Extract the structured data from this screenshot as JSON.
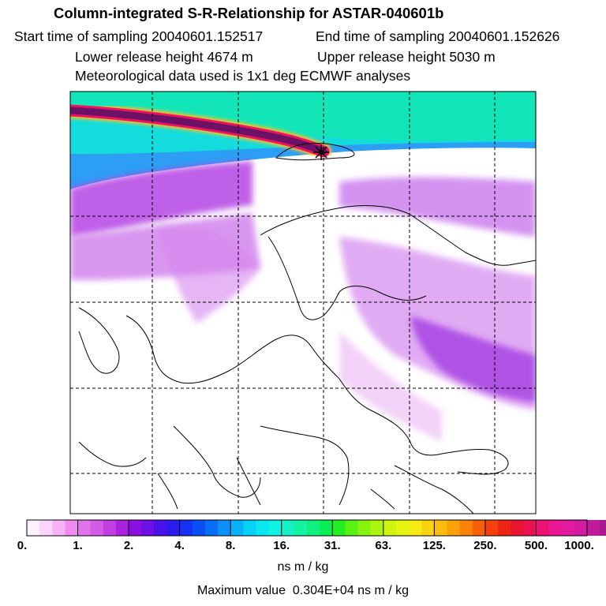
{
  "header": {
    "title": "Column-integrated S-R-Relationship for ASTAR-040601b",
    "start_time": "Start time of sampling 20040601.152517",
    "end_time": "End time of sampling 20040601.152626",
    "lower_height": "Lower release height 4674 m",
    "upper_height": "Upper release height 5030 m",
    "met_data": "Meteorological data used is 1x1 deg ECMWF analyses"
  },
  "colorbar": {
    "labels": [
      "0.",
      "1.",
      "2.",
      "4.",
      "8.",
      "16.",
      "31.",
      "63.",
      "125.",
      "250.",
      "500.",
      "1000."
    ],
    "colors": [
      "#fff0fe",
      "#fbd5fb",
      "#f6b3f6",
      "#ee8cf0",
      "#e073ea",
      "#d25ce6",
      "#c13fe2",
      "#aa22df",
      "#8c10e0",
      "#6e0fe6",
      "#4a12ea",
      "#2a1cf0",
      "#1630f4",
      "#0a4ef6",
      "#0a6ef8",
      "#0a90fa",
      "#08b2f8",
      "#08d0f6",
      "#0ae6f0",
      "#10f2e2",
      "#14f2c4",
      "#14f2a2",
      "#10f07e",
      "#0aee54",
      "#22ee22",
      "#5af014",
      "#86f410",
      "#aef40e",
      "#cef410",
      "#e6f414",
      "#f4ea14",
      "#f8d410",
      "#fcbc0c",
      "#fca008",
      "#fa8206",
      "#f86008",
      "#f4400c",
      "#ee2414",
      "#ea1430",
      "#ea1252",
      "#ec1274",
      "#ec1692",
      "#e21aa0",
      "#d21aa2",
      "#c01a9c",
      "#a81890",
      "#8c1680",
      "#6c1266"
    ],
    "units": "ns m / kg",
    "max_value_line": "Maximum value  0.304E+04 ns m / kg"
  },
  "map": {
    "release_marker": "crosshair-marker"
  }
}
